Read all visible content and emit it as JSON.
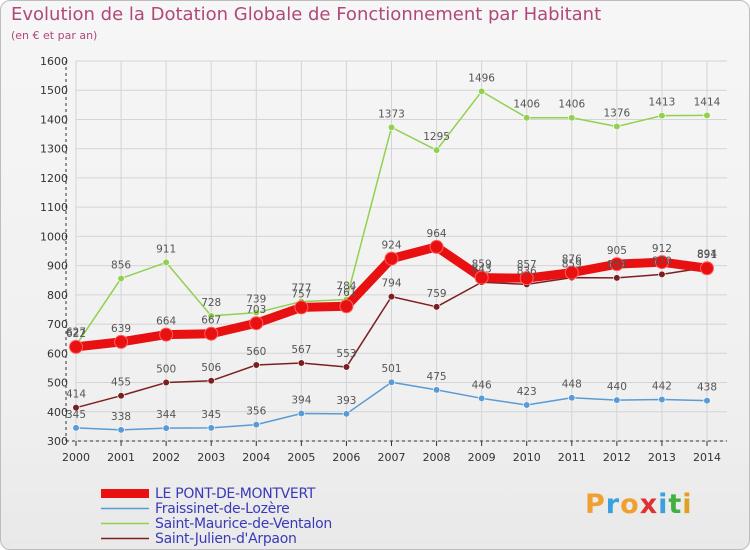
{
  "title": "Evolution de la Dotation Globale de Fonctionnement par Habitant",
  "subtitle": "(en € et par an)",
  "brand": {
    "text": "Proxiti",
    "colors": [
      "#f0a030",
      "#3aa0e0",
      "#f0a030",
      "#e03030",
      "#3aa0e0",
      "#40b040",
      "#e0a020"
    ]
  },
  "chart_data": {
    "type": "line",
    "title": "Evolution de la Dotation Globale de Fonctionnement par Habitant",
    "subtitle": "(en € et par an)",
    "xlabel": "",
    "ylabel": "",
    "ylim": [
      300,
      1600
    ],
    "yticks": [
      300,
      400,
      500,
      600,
      700,
      800,
      900,
      1000,
      1100,
      1200,
      1300,
      1400,
      1500,
      1600
    ],
    "categories": [
      "2000",
      "2001",
      "2002",
      "2003",
      "2004",
      "2005",
      "2006",
      "2007",
      "2008",
      "2009",
      "2010",
      "2011",
      "2012",
      "2013",
      "2014"
    ],
    "legend_position": "bottom-left",
    "series": [
      {
        "name": "LE PONT-DE-MONTVERT",
        "color": "#e81010",
        "emphasis": true,
        "values": [
          622,
          639,
          664,
          667,
          703,
          757,
          761,
          924,
          964,
          859,
          857,
          876,
          905,
          912,
          891
        ]
      },
      {
        "name": "Fraissinet-de-Lozère",
        "color": "#5b9bd5",
        "emphasis": false,
        "values": [
          345,
          338,
          344,
          345,
          356,
          394,
          393,
          501,
          475,
          446,
          423,
          448,
          440,
          442,
          438
        ]
      },
      {
        "name": "Saint-Maurice-de-Ventalon",
        "color": "#92d050",
        "emphasis": false,
        "values": [
          627,
          856,
          911,
          728,
          739,
          777,
          784,
          1373,
          1295,
          1496,
          1406,
          1406,
          1376,
          1413,
          1414
        ]
      },
      {
        "name": "Saint-Julien-d'Arpaon",
        "color": "#7b2020",
        "emphasis": false,
        "values": [
          414,
          455,
          500,
          506,
          560,
          567,
          553,
          794,
          759,
          843,
          836,
          859,
          858,
          870,
          894
        ]
      }
    ]
  }
}
